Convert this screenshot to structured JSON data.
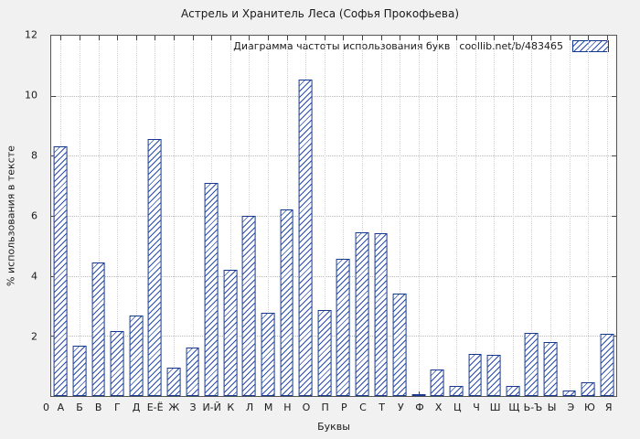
{
  "chart_data": {
    "type": "bar",
    "title": "Астрель и Хранитель Леса (Софья Прокофьева)",
    "xlabel": "Буквы",
    "ylabel": "% использования в тексте",
    "legend_label": "Диаграмма частоты использования букв",
    "legend_source": "coollib.net/b/483465",
    "legend_position": "top-right",
    "origin_tick_label": "0",
    "ylim": [
      0,
      12
    ],
    "yticks": [
      0,
      2,
      4,
      6,
      8,
      10,
      12
    ],
    "grid": true,
    "bar_style": "blue-diagonal-hatch",
    "categories": [
      "А",
      "Б",
      "В",
      "Г",
      "Д",
      "Е-Ё",
      "Ж",
      "З",
      "И-Й",
      "К",
      "Л",
      "М",
      "Н",
      "О",
      "П",
      "Р",
      "С",
      "Т",
      "У",
      "Ф",
      "Х",
      "Ц",
      "Ч",
      "Ш",
      "Щ",
      "Ь-Ъ",
      "Ы",
      "Э",
      "Ю",
      "Я"
    ],
    "values": [
      8.3,
      1.67,
      4.45,
      2.15,
      2.67,
      8.55,
      0.94,
      1.6,
      7.1,
      4.2,
      6.0,
      2.76,
      6.2,
      10.55,
      2.85,
      4.58,
      5.45,
      5.42,
      3.4,
      0.06,
      0.88,
      0.33,
      1.39,
      1.36,
      0.33,
      2.09,
      1.79,
      0.18,
      0.45,
      2.06
    ]
  },
  "colors": {
    "background": "#f1f1f1",
    "plot_background": "#ffffff",
    "bar_border": "#16388e",
    "hatch": "#2a4db0",
    "grid": "#b8b8b8",
    "text": "#1a1a1a"
  }
}
